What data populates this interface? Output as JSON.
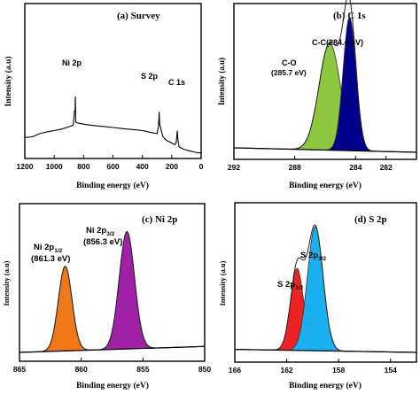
{
  "chart_data": [
    {
      "type": "line",
      "panel": "(a)  Survey",
      "xlabel": "Binding energy (eV)",
      "ylabel": "Intensity (a.u)",
      "xlim": [
        1200,
        0
      ],
      "xticks": [
        "1200",
        "1000",
        "800",
        "600",
        "400",
        "200",
        "0"
      ],
      "annotations": [
        {
          "text": "Ni 2p",
          "x": 856
        },
        {
          "text": "S 2p",
          "x": 163
        },
        {
          "text": "C 1s",
          "x": 284
        }
      ],
      "series": [
        {
          "values": [
            [
              1200,
              0.135
            ],
            [
              1150,
              0.14
            ],
            [
              1100,
              0.16
            ],
            [
              1050,
              0.172
            ],
            [
              1000,
              0.18
            ],
            [
              950,
              0.19
            ],
            [
              900,
              0.205
            ],
            [
              870,
              0.215
            ],
            [
              862,
              0.31
            ],
            [
              858,
              0.3
            ],
            [
              856,
              0.4
            ],
            [
              853,
              0.235
            ],
            [
              840,
              0.23
            ],
            [
              800,
              0.222
            ],
            [
              750,
              0.215
            ],
            [
              700,
              0.21
            ],
            [
              650,
              0.205
            ],
            [
              600,
              0.2
            ],
            [
              550,
              0.195
            ],
            [
              500,
              0.19
            ],
            [
              450,
              0.185
            ],
            [
              400,
              0.18
            ],
            [
              350,
              0.17
            ],
            [
              300,
              0.16
            ],
            [
              290,
              0.21
            ],
            [
              285,
              0.3
            ],
            [
              282,
              0.22
            ],
            [
              260,
              0.14
            ],
            [
              240,
              0.12
            ],
            [
              220,
              0.11
            ],
            [
              200,
              0.1
            ],
            [
              180,
              0.09
            ],
            [
              170,
              0.1
            ],
            [
              165,
              0.145
            ],
            [
              162,
              0.18
            ],
            [
              158,
              0.12
            ],
            [
              150,
              0.075
            ],
            [
              120,
              0.06
            ],
            [
              80,
              0.05
            ],
            [
              40,
              0.04
            ],
            [
              0,
              0.035
            ]
          ]
        }
      ]
    },
    {
      "type": "area",
      "panel": "(b)  C 1s",
      "xlabel": "Binding energy (eV)",
      "ylabel": "Intensity (a.u)",
      "xlim": [
        292,
        280
      ],
      "xticks": [
        "292",
        "288",
        "284",
        "282"
      ],
      "annotations": [
        {
          "text": "C-C(284.4 eV)",
          "x": 284.4
        },
        {
          "text": "C-O",
          "x": 285.7
        },
        {
          "text": "(285.7 eV)",
          "x": 285.7
        }
      ],
      "series": [
        {
          "name": "C-O",
          "color": "#8dc63f",
          "center": 285.7,
          "height": 0.72,
          "width": 0.7
        },
        {
          "name": "C-C",
          "color": "#00008b",
          "center": 284.4,
          "height": 0.9,
          "width": 0.42
        }
      ],
      "background": {
        "start": 0.03,
        "end": 0.0
      }
    },
    {
      "type": "area",
      "panel": "(c)  Ni 2p",
      "xlabel": "Binding energy (eV)",
      "ylabel": "Intensity (a.u)",
      "xlim": [
        865,
        850
      ],
      "xticks": [
        "865",
        "860",
        "855",
        "850"
      ],
      "annotations": [
        {
          "text": "Ni 2p",
          "sub": "1/2",
          "x": 861.3
        },
        {
          "text": "(861.3 eV)",
          "x": 861.3
        },
        {
          "text": "Ni 2p",
          "sub": "3/2",
          "x": 856.3
        },
        {
          "text": "(856.3 eV)",
          "x": 856.3
        }
      ],
      "series": [
        {
          "name": "Ni 2p1/2",
          "color": "#f07818",
          "center": 861.3,
          "height": 0.57,
          "width": 0.55
        },
        {
          "name": "Ni 2p3/2",
          "color": "#a020a8",
          "center": 856.3,
          "height": 0.79,
          "width": 0.62
        }
      ],
      "background": {
        "start": 0.0,
        "end": 0.04
      }
    },
    {
      "type": "area",
      "panel": "(d)  S 2p",
      "xlabel": "Binding energy (eV)",
      "ylabel": "Intensity (a.u)",
      "xlim": [
        166,
        152
      ],
      "xticks": [
        "166",
        "162",
        "158",
        "154"
      ],
      "annotations": [
        {
          "text": "S 2p",
          "sub": "1/2",
          "x": 161.2
        },
        {
          "text": "S 2p",
          "sub": "3/2",
          "x": 159.8
        }
      ],
      "series": [
        {
          "name": "S 2p1/2",
          "color": "#ee2222",
          "center": 161.2,
          "height": 0.55,
          "width": 0.5
        },
        {
          "name": "S 2p3/2",
          "color": "#1ab0f0",
          "center": 159.8,
          "height": 0.83,
          "width": 0.6
        }
      ],
      "background": {
        "start": 0.02,
        "end": 0.0
      }
    }
  ]
}
